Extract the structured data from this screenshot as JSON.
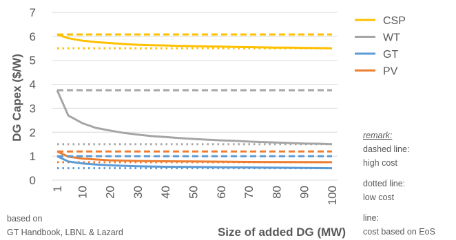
{
  "chart_data": {
    "type": "line",
    "title": "",
    "xlabel": "Size of added DG (MW)",
    "ylabel": "DG Capex ($/W)",
    "xlim": [
      1,
      100
    ],
    "ylim": [
      0,
      7
    ],
    "x_ticks": [
      "1",
      "10",
      "20",
      "30",
      "40",
      "50",
      "60",
      "70",
      "80",
      "90",
      "100"
    ],
    "y_ticks": [
      "0",
      "1",
      "2",
      "3",
      "4",
      "5",
      "6",
      "7"
    ],
    "grid": "horizontal",
    "legend_position": "top-right",
    "legend": [
      "CSP",
      "WT",
      "GT",
      "PV"
    ],
    "colors": {
      "CSP": "#FFC000",
      "WT": "#A5A5A5",
      "GT": "#5B9BD5",
      "PV": "#ED7D31"
    },
    "series": [
      {
        "name": "CSP",
        "style": "dashed",
        "x": [
          1,
          100
        ],
        "y": [
          6.08,
          6.08
        ]
      },
      {
        "name": "CSP",
        "style": "dotted",
        "x": [
          1,
          100
        ],
        "y": [
          5.5,
          5.5
        ]
      },
      {
        "name": "CSP",
        "style": "solid",
        "x": [
          1,
          5,
          10,
          15,
          20,
          25,
          30,
          35,
          40,
          45,
          50,
          55,
          60,
          65,
          70,
          75,
          80,
          85,
          90,
          95,
          100
        ],
        "y": [
          6.08,
          5.92,
          5.82,
          5.76,
          5.72,
          5.68,
          5.65,
          5.63,
          5.62,
          5.6,
          5.59,
          5.58,
          5.57,
          5.56,
          5.55,
          5.54,
          5.53,
          5.53,
          5.52,
          5.51,
          5.5
        ]
      },
      {
        "name": "WT",
        "style": "dashed",
        "x": [
          1,
          100
        ],
        "y": [
          3.75,
          3.75
        ]
      },
      {
        "name": "WT",
        "style": "dotted",
        "x": [
          1,
          100
        ],
        "y": [
          1.5,
          1.5
        ]
      },
      {
        "name": "WT",
        "style": "solid",
        "x": [
          1,
          5,
          10,
          15,
          20,
          25,
          30,
          35,
          40,
          45,
          50,
          55,
          60,
          65,
          70,
          75,
          80,
          85,
          90,
          95,
          100
        ],
        "y": [
          3.75,
          2.7,
          2.38,
          2.18,
          2.07,
          1.97,
          1.9,
          1.84,
          1.8,
          1.76,
          1.72,
          1.69,
          1.66,
          1.64,
          1.61,
          1.59,
          1.57,
          1.55,
          1.53,
          1.52,
          1.5
        ]
      },
      {
        "name": "PV",
        "style": "dashed",
        "x": [
          1,
          100
        ],
        "y": [
          1.2,
          1.2
        ]
      },
      {
        "name": "PV",
        "style": "dotted",
        "x": [
          1,
          100
        ],
        "y": [
          0.75,
          0.75
        ]
      },
      {
        "name": "PV",
        "style": "solid",
        "x": [
          1,
          5,
          10,
          20,
          30,
          50,
          70,
          100
        ],
        "y": [
          1.2,
          0.98,
          0.9,
          0.83,
          0.8,
          0.78,
          0.76,
          0.75
        ]
      },
      {
        "name": "GT",
        "style": "dashed",
        "x": [
          1,
          100
        ],
        "y": [
          1.0,
          1.0
        ]
      },
      {
        "name": "GT",
        "style": "dotted",
        "x": [
          1,
          100
        ],
        "y": [
          0.5,
          0.5
        ]
      },
      {
        "name": "GT",
        "style": "solid",
        "x": [
          1,
          5,
          10,
          15,
          20,
          25,
          30,
          35,
          40,
          50,
          60,
          70,
          80,
          90,
          100
        ],
        "y": [
          1.0,
          0.78,
          0.7,
          0.65,
          0.62,
          0.6,
          0.58,
          0.57,
          0.56,
          0.55,
          0.54,
          0.53,
          0.52,
          0.51,
          0.5
        ]
      }
    ]
  },
  "notes": {
    "source_line1": "based on",
    "source_line2": "GT Handbook, LBNL & Lazard",
    "remark_title": "remark:",
    "dashed_line1": "dashed line:",
    "dashed_line2": "high cost",
    "dotted_line1": "dotted line:",
    "dotted_line2": "low cost",
    "solid_line1": "line:",
    "solid_line2": "cost based on EoS"
  }
}
